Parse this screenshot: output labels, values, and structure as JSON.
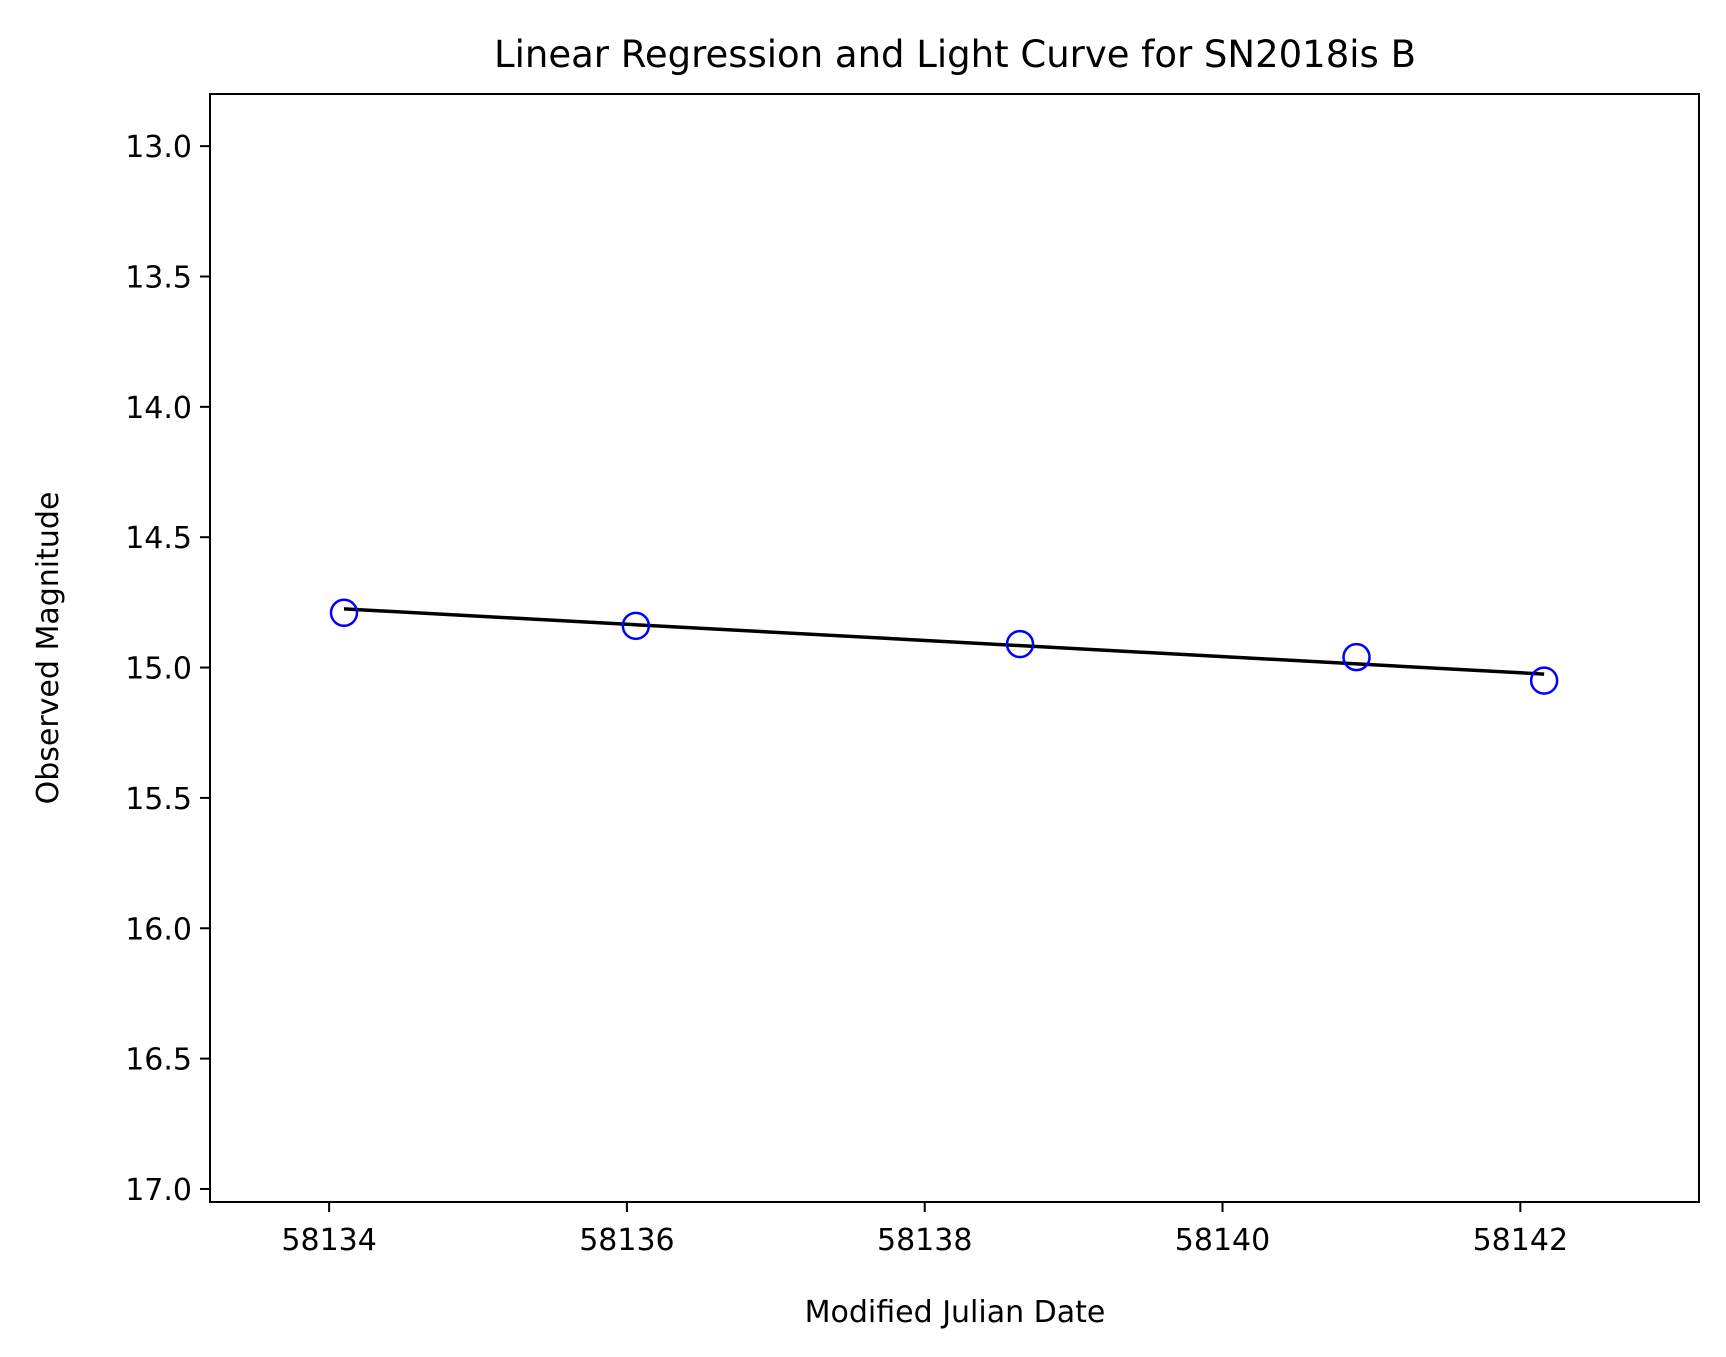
{
  "chart_data": {
    "type": "scatter",
    "title": "Linear Regression and Light Curve for SN2018is B",
    "xlabel": "Modified Julian Date",
    "ylabel": "Observed Magnitude",
    "xlim": [
      58133.2,
      58143.2
    ],
    "ylim": [
      17.05,
      12.8
    ],
    "y_inverted": true,
    "grid": false,
    "xticks": [
      58134,
      58136,
      58138,
      58140,
      58142
    ],
    "xtick_labels": [
      "58134",
      "58136",
      "58138",
      "58140",
      "58142"
    ],
    "yticks": [
      13.0,
      13.5,
      14.0,
      14.5,
      15.0,
      15.5,
      16.0,
      16.5,
      17.0
    ],
    "ytick_labels": [
      "13.0",
      "13.5",
      "14.0",
      "14.5",
      "15.0",
      "15.5",
      "16.0",
      "16.5",
      "17.0"
    ],
    "series": [
      {
        "type": "scatter",
        "marker": "open-circle",
        "color": "#0000ff",
        "x": [
          58134.1,
          58136.06,
          58138.64,
          58140.9,
          58142.16
        ],
        "y": [
          14.79,
          14.84,
          14.91,
          14.96,
          15.05
        ]
      },
      {
        "type": "line",
        "color": "#000000",
        "x": [
          58134.1,
          58142.16
        ],
        "y": [
          14.775,
          15.025
        ]
      }
    ]
  }
}
